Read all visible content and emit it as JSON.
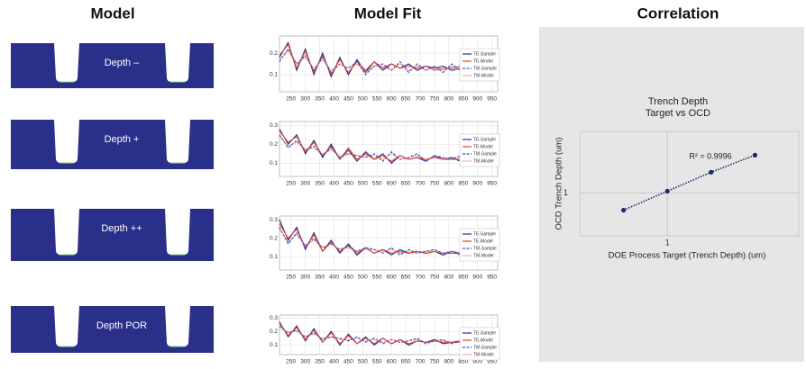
{
  "model": {
    "title": "Model",
    "labels": [
      "Depth –",
      "Depth +",
      "Depth ++",
      "Depth POR"
    ]
  },
  "fit_title": "Model Fit",
  "correlation_title": "Correlation",
  "chart_data": [
    {
      "type": "line",
      "x": [
        210,
        240,
        270,
        300,
        330,
        360,
        390,
        420,
        450,
        480,
        510,
        540,
        570,
        600,
        630,
        660,
        690,
        720,
        750,
        780,
        810,
        840,
        870,
        900,
        930,
        960
      ],
      "xlim": [
        210,
        970
      ],
      "xticks": [
        250,
        300,
        350,
        400,
        450,
        500,
        550,
        600,
        650,
        700,
        750,
        800,
        850,
        900,
        950
      ],
      "ylim": [
        0.02,
        0.28
      ],
      "yticks": [
        0.1,
        0.2
      ],
      "grid": true,
      "legend": "right",
      "series": [
        {
          "name": "TE-Sample",
          "color": "#1f2f8f",
          "dash": "solid",
          "values": [
            0.18,
            0.25,
            0.12,
            0.22,
            0.1,
            0.2,
            0.09,
            0.18,
            0.1,
            0.17,
            0.11,
            0.16,
            0.12,
            0.15,
            0.13,
            0.15,
            0.12,
            0.14,
            0.13,
            0.14,
            0.12,
            0.13,
            0.14,
            0.13,
            0.14,
            0.13
          ]
        },
        {
          "name": "TE-Model",
          "color": "#e8402a",
          "dash": "solid",
          "values": [
            0.19,
            0.24,
            0.13,
            0.21,
            0.11,
            0.19,
            0.1,
            0.17,
            0.11,
            0.16,
            0.12,
            0.16,
            0.13,
            0.15,
            0.13,
            0.14,
            0.13,
            0.14,
            0.12,
            0.13,
            0.13,
            0.14,
            0.13,
            0.13,
            0.13,
            0.12
          ]
        },
        {
          "name": "TM-Sample",
          "color": "#3050d0",
          "dash": "dashed",
          "values": [
            0.16,
            0.22,
            0.15,
            0.19,
            0.12,
            0.18,
            0.11,
            0.15,
            0.13,
            0.16,
            0.1,
            0.14,
            0.15,
            0.12,
            0.16,
            0.11,
            0.15,
            0.12,
            0.14,
            0.11,
            0.15,
            0.12,
            0.13,
            0.12,
            0.14,
            0.12
          ]
        },
        {
          "name": "TM-Model",
          "color": "#e06040",
          "dash": "dotted",
          "values": [
            0.17,
            0.21,
            0.15,
            0.18,
            0.13,
            0.17,
            0.12,
            0.15,
            0.13,
            0.15,
            0.11,
            0.14,
            0.14,
            0.12,
            0.15,
            0.12,
            0.14,
            0.12,
            0.14,
            0.12,
            0.14,
            0.12,
            0.13,
            0.12,
            0.13,
            0.12
          ]
        }
      ]
    },
    {
      "type": "line",
      "x": [
        210,
        240,
        270,
        300,
        330,
        360,
        390,
        420,
        450,
        480,
        510,
        540,
        570,
        600,
        630,
        660,
        690,
        720,
        750,
        780,
        810,
        840,
        870,
        900,
        930,
        960
      ],
      "xlim": [
        210,
        970
      ],
      "xticks": [
        250,
        300,
        350,
        400,
        450,
        500,
        550,
        600,
        650,
        700,
        750,
        800,
        850,
        900,
        950
      ],
      "ylim": [
        0.03,
        0.32
      ],
      "yticks": [
        0.1,
        0.2,
        0.3
      ],
      "grid": true,
      "legend": "right",
      "series": [
        {
          "name": "TE-Sample",
          "color": "#1f2f8f",
          "dash": "solid",
          "values": [
            0.28,
            0.2,
            0.25,
            0.15,
            0.22,
            0.13,
            0.2,
            0.12,
            0.17,
            0.11,
            0.16,
            0.12,
            0.15,
            0.1,
            0.14,
            0.12,
            0.13,
            0.11,
            0.14,
            0.12,
            0.13,
            0.11,
            0.12,
            0.12,
            0.11,
            0.12
          ]
        },
        {
          "name": "TE-Model",
          "color": "#e8402a",
          "dash": "solid",
          "values": [
            0.27,
            0.21,
            0.24,
            0.16,
            0.21,
            0.14,
            0.19,
            0.12,
            0.18,
            0.12,
            0.15,
            0.12,
            0.14,
            0.11,
            0.14,
            0.12,
            0.13,
            0.12,
            0.13,
            0.12,
            0.12,
            0.12,
            0.12,
            0.12,
            0.12,
            0.12
          ]
        },
        {
          "name": "TM-Sample",
          "color": "#3050d0",
          "dash": "dashed",
          "values": [
            0.25,
            0.18,
            0.22,
            0.17,
            0.19,
            0.14,
            0.18,
            0.13,
            0.15,
            0.14,
            0.13,
            0.15,
            0.11,
            0.16,
            0.12,
            0.13,
            0.15,
            0.11,
            0.14,
            0.13,
            0.12,
            0.14,
            0.11,
            0.13,
            0.12,
            0.11
          ]
        },
        {
          "name": "TM-Model",
          "color": "#e06040",
          "dash": "dotted",
          "values": [
            0.24,
            0.19,
            0.21,
            0.17,
            0.18,
            0.15,
            0.17,
            0.14,
            0.15,
            0.14,
            0.14,
            0.14,
            0.12,
            0.15,
            0.12,
            0.13,
            0.14,
            0.12,
            0.13,
            0.13,
            0.12,
            0.13,
            0.12,
            0.12,
            0.12,
            0.12
          ]
        }
      ]
    },
    {
      "type": "line",
      "x": [
        210,
        240,
        270,
        300,
        330,
        360,
        390,
        420,
        450,
        480,
        510,
        540,
        570,
        600,
        630,
        660,
        690,
        720,
        750,
        780,
        810,
        840,
        870,
        900,
        930,
        960
      ],
      "xlim": [
        210,
        970
      ],
      "xticks": [
        250,
        300,
        350,
        400,
        450,
        500,
        550,
        600,
        650,
        700,
        750,
        800,
        850,
        900,
        950
      ],
      "ylim": [
        0.03,
        0.32
      ],
      "yticks": [
        0.1,
        0.2,
        0.3
      ],
      "grid": true,
      "legend": "right",
      "series": [
        {
          "name": "TE-Sample",
          "color": "#1f2f8f",
          "dash": "solid",
          "values": [
            0.3,
            0.19,
            0.26,
            0.14,
            0.23,
            0.13,
            0.19,
            0.12,
            0.17,
            0.11,
            0.15,
            0.12,
            0.14,
            0.11,
            0.14,
            0.12,
            0.13,
            0.12,
            0.13,
            0.11,
            0.13,
            0.12,
            0.12,
            0.11,
            0.13,
            0.12
          ]
        },
        {
          "name": "TE-Model",
          "color": "#e8402a",
          "dash": "solid",
          "values": [
            0.28,
            0.2,
            0.25,
            0.15,
            0.22,
            0.13,
            0.18,
            0.13,
            0.16,
            0.12,
            0.15,
            0.12,
            0.14,
            0.12,
            0.13,
            0.12,
            0.13,
            0.12,
            0.13,
            0.12,
            0.12,
            0.12,
            0.12,
            0.12,
            0.12,
            0.12
          ]
        },
        {
          "name": "TM-Sample",
          "color": "#3050d0",
          "dash": "dashed",
          "values": [
            0.26,
            0.17,
            0.23,
            0.16,
            0.2,
            0.15,
            0.17,
            0.14,
            0.16,
            0.13,
            0.15,
            0.14,
            0.12,
            0.15,
            0.11,
            0.14,
            0.12,
            0.13,
            0.14,
            0.12,
            0.13,
            0.11,
            0.13,
            0.12,
            0.12,
            0.11
          ]
        },
        {
          "name": "TM-Model",
          "color": "#e06040",
          "dash": "dotted",
          "values": [
            0.25,
            0.18,
            0.22,
            0.16,
            0.19,
            0.15,
            0.17,
            0.14,
            0.15,
            0.13,
            0.14,
            0.14,
            0.13,
            0.14,
            0.12,
            0.13,
            0.13,
            0.13,
            0.13,
            0.12,
            0.13,
            0.12,
            0.12,
            0.12,
            0.12,
            0.12
          ]
        }
      ]
    },
    {
      "type": "line",
      "x": [
        210,
        240,
        270,
        300,
        330,
        360,
        390,
        420,
        450,
        480,
        510,
        540,
        570,
        600,
        630,
        660,
        690,
        720,
        750,
        780,
        810,
        840,
        870,
        900,
        930,
        960
      ],
      "xlim": [
        210,
        970
      ],
      "xticks": [
        250,
        300,
        350,
        400,
        450,
        500,
        550,
        600,
        650,
        700,
        750,
        800,
        850,
        900,
        950
      ],
      "ylim": [
        0.03,
        0.32
      ],
      "yticks": [
        0.1,
        0.2,
        0.3
      ],
      "grid": true,
      "legend": "right",
      "series": [
        {
          "name": "TE-Sample",
          "color": "#1f2f8f",
          "dash": "solid",
          "values": [
            0.27,
            0.16,
            0.24,
            0.13,
            0.22,
            0.12,
            0.2,
            0.1,
            0.18,
            0.11,
            0.16,
            0.1,
            0.15,
            0.11,
            0.14,
            0.1,
            0.13,
            0.12,
            0.14,
            0.11,
            0.12,
            0.13,
            0.11,
            0.12,
            0.14,
            0.13
          ]
        },
        {
          "name": "TE-Model",
          "color": "#e8402a",
          "dash": "solid",
          "values": [
            0.26,
            0.17,
            0.23,
            0.14,
            0.21,
            0.12,
            0.19,
            0.11,
            0.17,
            0.11,
            0.15,
            0.11,
            0.15,
            0.11,
            0.14,
            0.11,
            0.13,
            0.12,
            0.13,
            0.12,
            0.12,
            0.12,
            0.12,
            0.12,
            0.13,
            0.12
          ]
        },
        {
          "name": "TM-Sample",
          "color": "#3050d0",
          "dash": "dashed",
          "values": [
            0.24,
            0.19,
            0.21,
            0.16,
            0.19,
            0.14,
            0.16,
            0.15,
            0.13,
            0.16,
            0.12,
            0.15,
            0.11,
            0.14,
            0.12,
            0.13,
            0.15,
            0.11,
            0.13,
            0.14,
            0.11,
            0.13,
            0.12,
            0.11,
            0.13,
            0.12
          ]
        },
        {
          "name": "TM-Model",
          "color": "#e06040",
          "dash": "dotted",
          "values": [
            0.23,
            0.19,
            0.2,
            0.16,
            0.18,
            0.15,
            0.16,
            0.14,
            0.14,
            0.15,
            0.13,
            0.14,
            0.12,
            0.14,
            0.12,
            0.13,
            0.14,
            0.12,
            0.13,
            0.13,
            0.12,
            0.13,
            0.12,
            0.12,
            0.12,
            0.12
          ]
        }
      ]
    },
    {
      "type": "scatter",
      "title": "Trench Depth",
      "subtitle": "Target vs OCD",
      "x_label": "DOE Process Target (Trench Depth) (um)",
      "y_label": "OCD Trench Depth (um)",
      "annotation": "R² = 0.9996",
      "x": [
        0.8,
        1.0,
        1.2,
        1.4
      ],
      "values": [
        0.82,
        1.02,
        1.22,
        1.4
      ],
      "color": "#1a2a6c",
      "xlim": [
        0.6,
        1.6
      ],
      "xticks": [
        1
      ],
      "ylim": [
        0.55,
        1.65
      ],
      "yticks": [
        1
      ],
      "grid": true
    }
  ]
}
